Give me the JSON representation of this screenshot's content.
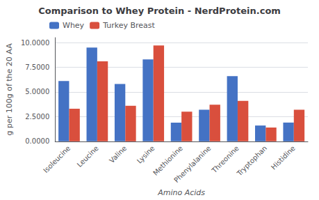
{
  "chart_data": {
    "type": "bar",
    "title": "Comparison to Whey Protein - NerdProtein.com",
    "xlabel": "Amino Acids",
    "ylabel": "g per 100g of the 20 AA",
    "categories": [
      "Isoleucine",
      "Leucine",
      "Valine",
      "Lysine",
      "Methionine",
      "Phenylalanine",
      "Threonine",
      "Tryptophan",
      "Histidine"
    ],
    "series": [
      {
        "name": "Whey",
        "color": "#4472C4",
        "values": [
          6.1,
          9.5,
          5.8,
          8.3,
          1.9,
          3.2,
          6.6,
          1.6,
          1.9
        ]
      },
      {
        "name": "Turkey Breast",
        "color": "#D94F3D",
        "values": [
          3.3,
          8.1,
          3.6,
          9.7,
          3.0,
          3.7,
          4.1,
          1.4,
          3.2
        ]
      }
    ],
    "ylim": [
      0,
      10.5
    ],
    "yticks": [
      {
        "value": 0.0,
        "label": "0.0000"
      },
      {
        "value": 2.5,
        "label": "2.5000"
      },
      {
        "value": 5.0,
        "label": "5.0000"
      },
      {
        "value": 7.5,
        "label": "7.5000"
      },
      {
        "value": 10.0,
        "label": "10.0000"
      }
    ],
    "grid": true,
    "legend": "upper left"
  }
}
